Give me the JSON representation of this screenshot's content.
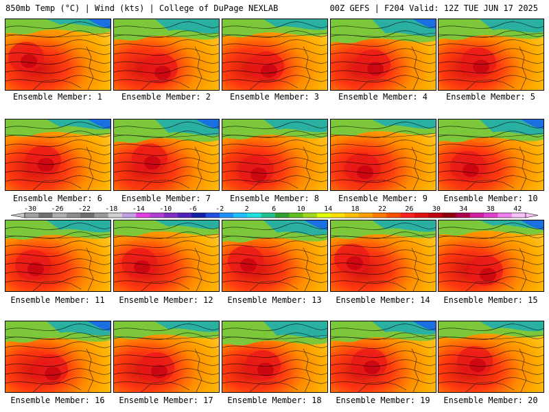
{
  "header": {
    "left": "850mb Temp (°C) | Wind (kts) | College of DuPage NEXLAB",
    "right": "00Z GEFS | F204 Valid: 12Z TUE JUN 17 2025"
  },
  "panels": [
    {
      "label": "Ensemble Member: 1"
    },
    {
      "label": "Ensemble Member: 2"
    },
    {
      "label": "Ensemble Member: 3"
    },
    {
      "label": "Ensemble Member: 4"
    },
    {
      "label": "Ensemble Member: 5"
    },
    {
      "label": "Ensemble Member: 6"
    },
    {
      "label": "Ensemble Member: 7"
    },
    {
      "label": "Ensemble Member: 8"
    },
    {
      "label": "Ensemble Member: 9"
    },
    {
      "label": "Ensemble Member: 10"
    },
    {
      "label": "Ensemble Member: 11"
    },
    {
      "label": "Ensemble Member: 12"
    },
    {
      "label": "Ensemble Member: 13"
    },
    {
      "label": "Ensemble Member: 14"
    },
    {
      "label": "Ensemble Member: 15"
    },
    {
      "label": "Ensemble Member: 16"
    },
    {
      "label": "Ensemble Member: 17"
    },
    {
      "label": "Ensemble Member: 18"
    },
    {
      "label": "Ensemble Member: 19"
    },
    {
      "label": "Ensemble Member: 20"
    }
  ],
  "colorbar": {
    "labels": [
      "-30",
      "-26",
      "-22",
      "-18",
      "-14",
      "-10",
      "-6",
      "-2",
      "2",
      "6",
      "10",
      "14",
      "18",
      "22",
      "26",
      "30",
      "34",
      "38",
      "42"
    ],
    "colors": [
      "#a0a0a0",
      "#707070",
      "#b0b0b0",
      "#8c8c8c",
      "#6e6e6e",
      "#9a9a9a",
      "#d0d0d0",
      "#c0a0e0",
      "#e040e0",
      "#b040d0",
      "#8030c0",
      "#5020c0",
      "#1020a0",
      "#2050e0",
      "#2090ff",
      "#20c0ff",
      "#20e0e0",
      "#20c090",
      "#30a030",
      "#60c020",
      "#a0d820",
      "#e0ff00",
      "#ffe000",
      "#ffc000",
      "#ffa000",
      "#ff7800",
      "#ff5000",
      "#ff2020",
      "#e01010",
      "#c00010",
      "#900010",
      "#b00050",
      "#d020a0",
      "#e040d0",
      "#f080f0",
      "#fac0fa"
    ]
  }
}
